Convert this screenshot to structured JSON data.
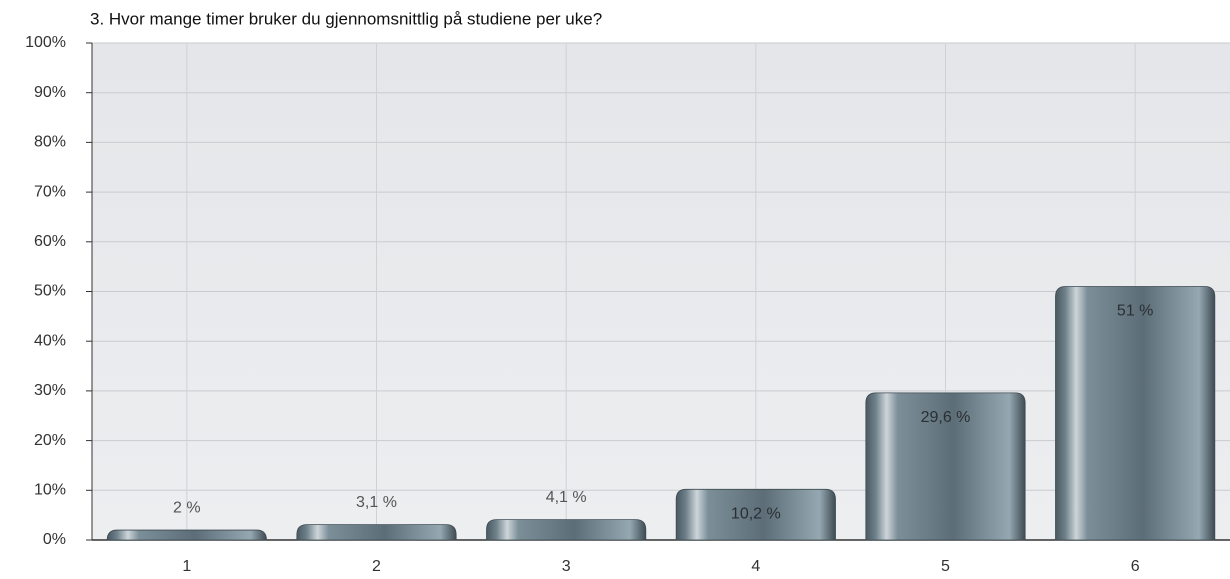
{
  "chart_data": {
    "type": "bar",
    "title": "3. Hvor mange timer bruker du gjennomsnittlig på studiene per uke?",
    "categories": [
      "1",
      "2",
      "3",
      "4",
      "5",
      "6"
    ],
    "values": [
      2,
      3.1,
      4.1,
      10.2,
      29.6,
      51
    ],
    "value_labels": [
      "2 %",
      "3,1 %",
      "4,1 %",
      "10,2 %",
      "29,6 %",
      "51 %"
    ],
    "color": "#5f717b",
    "ylim": [
      0,
      100
    ],
    "yticks": [
      {
        "value": 0,
        "label": "0%"
      },
      {
        "value": 10,
        "label": "10%"
      },
      {
        "value": 20,
        "label": "20%"
      },
      {
        "value": 30,
        "label": "30%"
      },
      {
        "value": 40,
        "label": "40%"
      },
      {
        "value": 50,
        "label": "50%"
      },
      {
        "value": 60,
        "label": "60%"
      },
      {
        "value": 70,
        "label": "70%"
      },
      {
        "value": 80,
        "label": "80%"
      },
      {
        "value": 90,
        "label": "90%"
      },
      {
        "value": 100,
        "label": "100%"
      }
    ],
    "grid": true
  }
}
